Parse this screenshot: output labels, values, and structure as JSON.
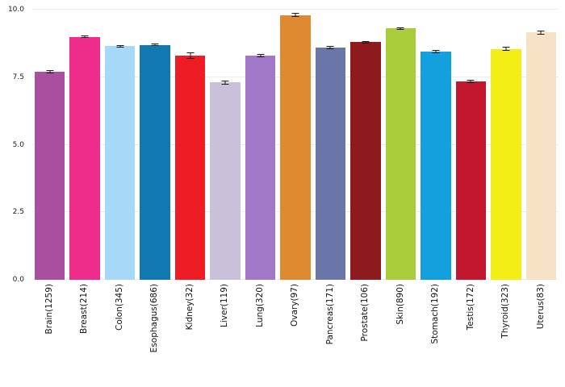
{
  "chart_data": {
    "type": "bar",
    "title": "",
    "xlabel": "",
    "ylabel": "",
    "ylim": [
      0,
      10
    ],
    "yticks": [
      0,
      2.5,
      5,
      7.5,
      10
    ],
    "ytick_labels": [
      "0.0",
      "2.5",
      "5.0",
      "7.5",
      "10.0"
    ],
    "grid": true,
    "legend": "none",
    "error_bar_color": "#1a1a1a",
    "categories": [
      "Brain(1259)",
      "Breast(214)",
      "Colon(345)",
      "Esophagus(686)",
      "Kidney(32)",
      "Liver(119)",
      "Lung(320)",
      "Ovary(97)",
      "Pancreas(171)",
      "Prostate(106)",
      "Skin(890)",
      "Stomach(192)",
      "Testis(172)",
      "Thyroid(323)",
      "Uterus(83)"
    ],
    "values": [
      7.7,
      9.0,
      8.65,
      8.7,
      8.3,
      7.3,
      8.3,
      9.8,
      8.6,
      8.8,
      9.3,
      8.45,
      7.35,
      8.55,
      9.15
    ],
    "errors": [
      0.05,
      0.05,
      0.05,
      0.05,
      0.12,
      0.08,
      0.05,
      0.07,
      0.05,
      0.05,
      0.05,
      0.06,
      0.06,
      0.07,
      0.08
    ],
    "colors": [
      "#aa4fa0",
      "#ee2d8b",
      "#a6d9f7",
      "#1278b2",
      "#ee1c25",
      "#c9c0da",
      "#a178c8",
      "#df8a31",
      "#6a76a8",
      "#8d1b1e",
      "#a9cc3a",
      "#14a0dc",
      "#c2172f",
      "#f3ef16",
      "#f6e3c6"
    ]
  }
}
